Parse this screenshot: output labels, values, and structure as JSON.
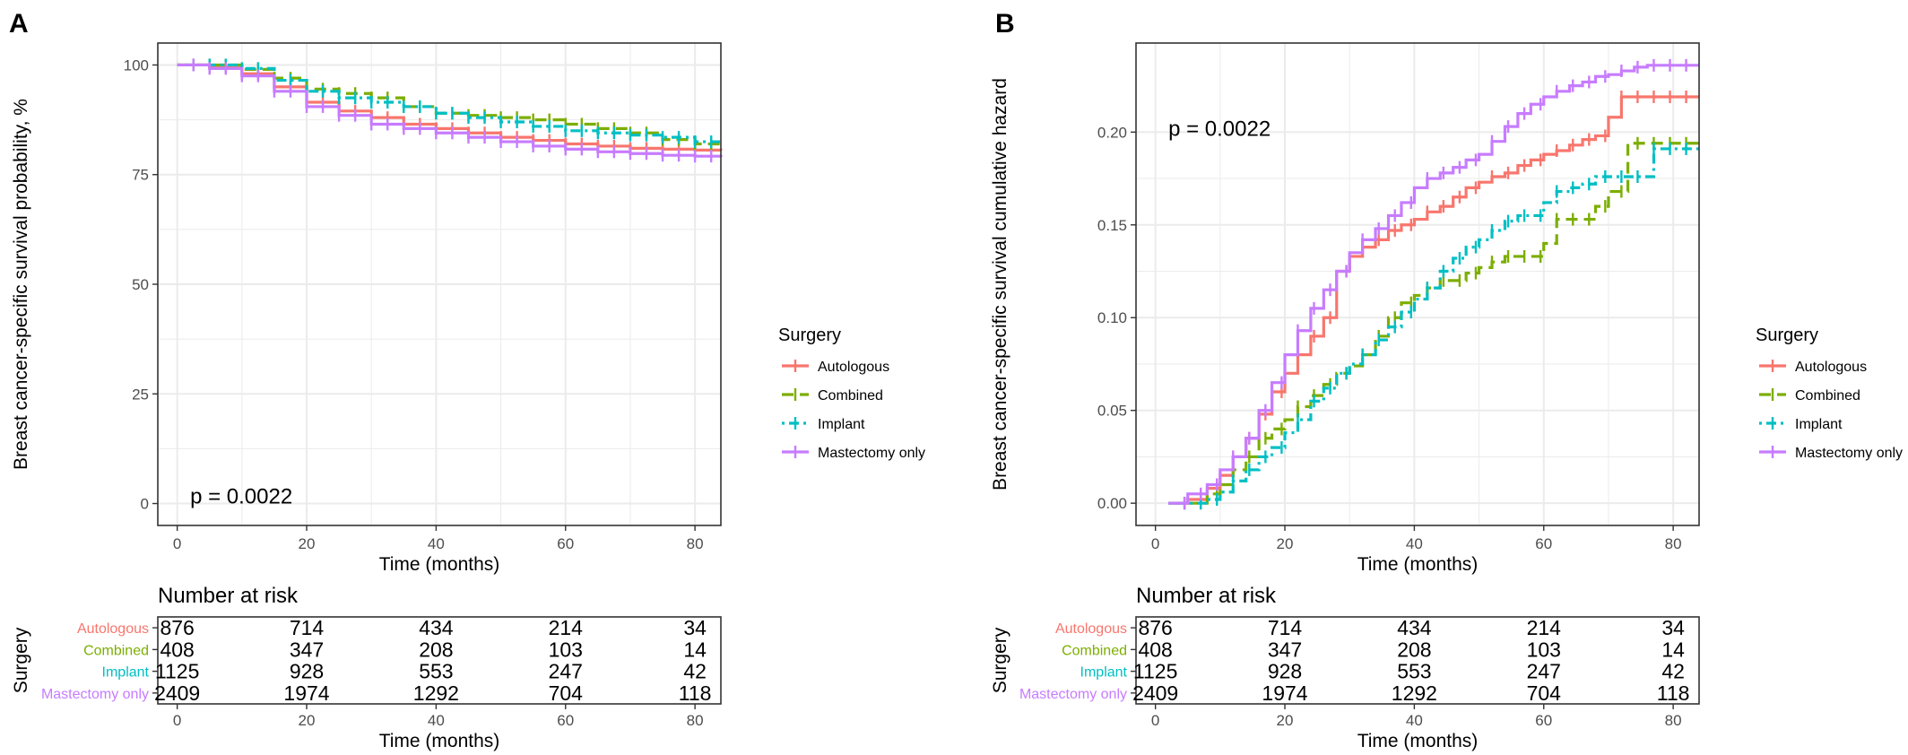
{
  "colors": {
    "autologous": "#F8766D",
    "combined": "#7CAE00",
    "implant": "#00BFC4",
    "mastectomy_only": "#C77CFF",
    "grid": "#EBEBEB",
    "panel_border": "#333333",
    "text": "#000000",
    "tick_text": "#4D4D4D"
  },
  "legend": {
    "title": "Surgery",
    "items": [
      "Autologous",
      "Combined",
      "Implant",
      "Mastectomy only"
    ]
  },
  "chart_data": [
    {
      "panel_label": "A",
      "type": "line",
      "subtype": "kaplan-meier survival, step",
      "ylabel": "Breast cancer-specific survival probability, %",
      "xlabel": "Time (months)",
      "xlim": [
        -3,
        84
      ],
      "ylim": [
        -5,
        105
      ],
      "xticks": [
        0,
        20,
        40,
        60,
        80
      ],
      "yticks": [
        0,
        25,
        50,
        75,
        100
      ],
      "ytick_labels": [
        "0",
        "25",
        "50",
        "75",
        "100"
      ],
      "annotation": "p = 0.0022",
      "annotation_pos": [
        2,
        0
      ],
      "legend_position": "right",
      "grid": true,
      "series": [
        {
          "name": "Autologous",
          "key": "autologous",
          "dash": "solid",
          "x": [
            0,
            5,
            10,
            15,
            20,
            25,
            30,
            35,
            40,
            45,
            50,
            55,
            60,
            65,
            70,
            75,
            80,
            84
          ],
          "y": [
            100,
            99.5,
            98,
            95,
            91.5,
            89.5,
            88,
            86.5,
            85.5,
            84.5,
            83.5,
            82.8,
            82,
            81.5,
            81,
            80.8,
            80.6,
            80.5
          ]
        },
        {
          "name": "Combined",
          "key": "combined",
          "dash": "dashed",
          "x": [
            0,
            5,
            10,
            15,
            20,
            25,
            30,
            35,
            40,
            45,
            50,
            55,
            60,
            65,
            70,
            75,
            80,
            84
          ],
          "y": [
            100,
            100,
            99,
            97,
            94.5,
            93.5,
            92.5,
            90.5,
            89,
            88.5,
            88,
            87.5,
            86.5,
            85.5,
            84.5,
            83,
            82,
            81.5
          ]
        },
        {
          "name": "Implant",
          "key": "implant",
          "dash": "dotdash",
          "x": [
            0,
            5,
            10,
            15,
            20,
            25,
            30,
            35,
            40,
            45,
            50,
            55,
            60,
            65,
            70,
            75,
            80,
            84
          ],
          "y": [
            100,
            100,
            99.2,
            96.5,
            94,
            92.5,
            91.5,
            90.5,
            89,
            88,
            87,
            86,
            85,
            84.5,
            84,
            83.5,
            82.5,
            82.5
          ]
        },
        {
          "name": "Mastectomy only",
          "key": "mastectomy_only",
          "dash": "solid",
          "x": [
            0,
            5,
            10,
            15,
            20,
            25,
            30,
            35,
            40,
            45,
            50,
            55,
            60,
            65,
            70,
            75,
            80,
            84
          ],
          "y": [
            100,
            99.2,
            97.5,
            94,
            90.5,
            88.5,
            86.5,
            85.5,
            84.5,
            83.5,
            82.5,
            81.5,
            80.8,
            80.2,
            79.8,
            79.4,
            79.2,
            79
          ]
        }
      ],
      "risk_table": {
        "title": "Number at risk",
        "ylabel": "Surgery",
        "xlabel": "Time (months)",
        "times": [
          0,
          20,
          40,
          60,
          80
        ],
        "rows": [
          {
            "name": "Autologous",
            "key": "autologous",
            "values": [
              "876",
              "714",
              "434",
              "214",
              "34"
            ]
          },
          {
            "name": "Combined",
            "key": "combined",
            "values": [
              "408",
              "347",
              "208",
              "103",
              "14"
            ]
          },
          {
            "name": "Implant",
            "key": "implant",
            "values": [
              "1125",
              "928",
              "553",
              "247",
              "42"
            ]
          },
          {
            "name": "Mastectomy only",
            "key": "mastectomy_only",
            "values": [
              "2409",
              "1974",
              "1292",
              "704",
              "118"
            ]
          }
        ]
      }
    },
    {
      "panel_label": "B",
      "type": "line",
      "subtype": "cumulative hazard, step",
      "ylabel": "Breast cancer-specific survival cumulative hazard",
      "xlabel": "Time (months)",
      "xlim": [
        -3,
        84
      ],
      "ylim": [
        -0.012,
        0.248
      ],
      "xticks": [
        0,
        20,
        40,
        60,
        80
      ],
      "yticks": [
        0,
        0.05,
        0.1,
        0.15,
        0.2
      ],
      "ytick_labels": [
        "0.00",
        "0.05",
        "0.10",
        "0.15",
        "0.20"
      ],
      "annotation": "p = 0.0022",
      "annotation_pos": [
        2,
        0.198
      ],
      "legend_position": "right",
      "grid": true,
      "series": [
        {
          "name": "Autologous",
          "key": "autologous",
          "dash": "solid",
          "x": [
            2,
            5,
            8,
            10,
            12,
            14,
            16,
            18,
            20,
            22,
            24,
            26,
            28,
            30,
            32,
            34,
            36,
            38,
            40,
            42,
            44,
            46,
            48,
            50,
            52,
            54,
            56,
            58,
            60,
            62,
            64,
            66,
            68,
            70,
            72,
            74,
            76,
            78,
            80,
            84
          ],
          "y": [
            0,
            0.002,
            0.008,
            0.015,
            0.025,
            0.035,
            0.048,
            0.06,
            0.07,
            0.08,
            0.09,
            0.1,
            0.125,
            0.133,
            0.138,
            0.142,
            0.147,
            0.15,
            0.153,
            0.157,
            0.16,
            0.165,
            0.17,
            0.173,
            0.176,
            0.178,
            0.182,
            0.185,
            0.188,
            0.19,
            0.193,
            0.196,
            0.198,
            0.208,
            0.219,
            0.219,
            0.219,
            0.219,
            0.219,
            0.219
          ]
        },
        {
          "name": "Combined",
          "key": "combined",
          "dash": "dashed",
          "x": [
            2,
            5,
            8,
            10,
            12,
            14,
            16,
            18,
            20,
            22,
            24,
            26,
            28,
            30,
            32,
            34,
            36,
            38,
            40,
            42,
            44,
            46,
            48,
            50,
            52,
            54,
            56,
            58,
            60,
            62,
            64,
            66,
            68,
            70,
            72,
            73,
            76,
            80,
            84
          ],
          "y": [
            0,
            0,
            0.005,
            0.01,
            0.018,
            0.025,
            0.035,
            0.04,
            0.045,
            0.052,
            0.058,
            0.064,
            0.07,
            0.074,
            0.08,
            0.09,
            0.1,
            0.108,
            0.112,
            0.116,
            0.12,
            0.12,
            0.124,
            0.127,
            0.13,
            0.133,
            0.133,
            0.133,
            0.14,
            0.153,
            0.153,
            0.153,
            0.16,
            0.168,
            0.168,
            0.194,
            0.194,
            0.194,
            0.194
          ]
        },
        {
          "name": "Implant",
          "key": "implant",
          "dash": "dotdash",
          "x": [
            2,
            5,
            8,
            10,
            12,
            14,
            16,
            18,
            20,
            22,
            24,
            26,
            28,
            30,
            32,
            34,
            36,
            38,
            40,
            42,
            44,
            46,
            48,
            50,
            52,
            54,
            56,
            58,
            60,
            62,
            64,
            66,
            68,
            70,
            72,
            74,
            76,
            77,
            80,
            84
          ],
          "y": [
            0,
            0,
            0.002,
            0.006,
            0.012,
            0.018,
            0.025,
            0.03,
            0.038,
            0.045,
            0.055,
            0.062,
            0.07,
            0.075,
            0.08,
            0.088,
            0.095,
            0.103,
            0.11,
            0.116,
            0.125,
            0.132,
            0.138,
            0.142,
            0.147,
            0.152,
            0.155,
            0.155,
            0.162,
            0.168,
            0.17,
            0.172,
            0.176,
            0.176,
            0.176,
            0.176,
            0.176,
            0.191,
            0.191,
            0.191
          ]
        },
        {
          "name": "Mastectomy only",
          "key": "mastectomy_only",
          "dash": "solid",
          "x": [
            2,
            5,
            8,
            10,
            12,
            14,
            16,
            18,
            20,
            22,
            24,
            26,
            28,
            30,
            32,
            34,
            36,
            38,
            40,
            42,
            44,
            46,
            48,
            50,
            52,
            54,
            56,
            58,
            60,
            62,
            64,
            66,
            68,
            70,
            72,
            74,
            76,
            78,
            80,
            84
          ],
          "y": [
            0,
            0.005,
            0.01,
            0.018,
            0.025,
            0.035,
            0.05,
            0.065,
            0.08,
            0.093,
            0.105,
            0.115,
            0.125,
            0.135,
            0.142,
            0.148,
            0.155,
            0.162,
            0.17,
            0.175,
            0.178,
            0.181,
            0.185,
            0.188,
            0.195,
            0.203,
            0.21,
            0.215,
            0.219,
            0.222,
            0.225,
            0.227,
            0.23,
            0.231,
            0.233,
            0.235,
            0.236,
            0.236,
            0.236,
            0.236
          ]
        }
      ],
      "risk_table": {
        "title": "Number at risk",
        "ylabel": "Surgery",
        "xlabel": "Time (months)",
        "times": [
          0,
          20,
          40,
          60,
          80
        ],
        "rows": [
          {
            "name": "Autologous",
            "key": "autologous",
            "values": [
              "876",
              "714",
              "434",
              "214",
              "34"
            ]
          },
          {
            "name": "Combined",
            "key": "combined",
            "values": [
              "408",
              "347",
              "208",
              "103",
              "14"
            ]
          },
          {
            "name": "Implant",
            "key": "implant",
            "values": [
              "1125",
              "928",
              "553",
              "247",
              "42"
            ]
          },
          {
            "name": "Mastectomy only",
            "key": "mastectomy_only",
            "values": [
              "2409",
              "1974",
              "1292",
              "704",
              "118"
            ]
          }
        ]
      }
    }
  ]
}
